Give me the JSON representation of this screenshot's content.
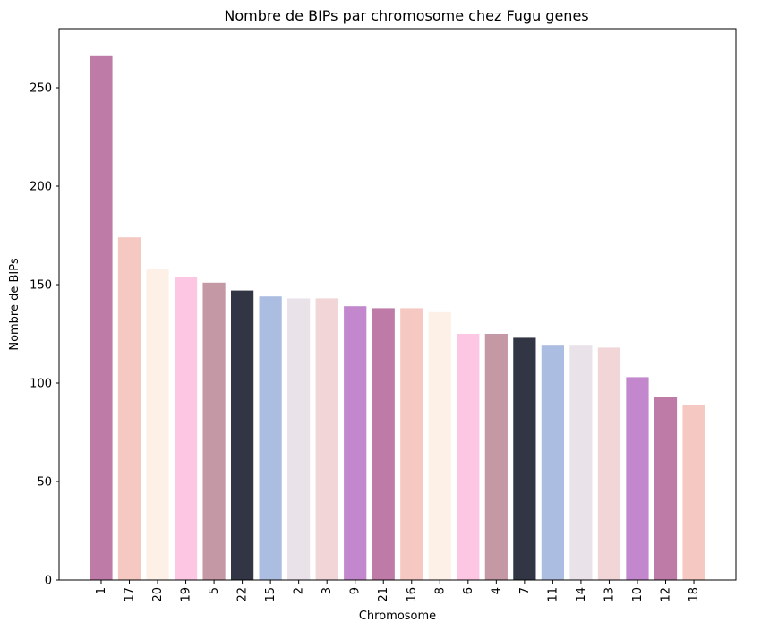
{
  "chart_data": {
    "type": "bar",
    "title": "Nombre de BIPs par chromosome chez Fugu genes",
    "xlabel": "Chromosome",
    "ylabel": "Nombre de BIPs",
    "categories": [
      "1",
      "17",
      "20",
      "19",
      "5",
      "22",
      "15",
      "2",
      "3",
      "9",
      "21",
      "16",
      "8",
      "6",
      "4",
      "7",
      "11",
      "14",
      "13",
      "10",
      "12",
      "18"
    ],
    "values": [
      266,
      174,
      158,
      154,
      151,
      147,
      144,
      143,
      143,
      139,
      138,
      138,
      136,
      125,
      125,
      123,
      119,
      119,
      118,
      103,
      93,
      89
    ],
    "colors": [
      "#be7ba7",
      "#f5c8c2",
      "#fdf0e7",
      "#fdc6e3",
      "#c498a4",
      "#323644",
      "#abbde0",
      "#e9e2e8",
      "#f1d5d7",
      "#c287cc",
      "#be7ba7",
      "#f5c8c2",
      "#fdf0e7",
      "#fdc6e3",
      "#c498a4",
      "#323644",
      "#abbde0",
      "#e9e2e8",
      "#f1d5d7",
      "#c287cc",
      "#be7ba7",
      "#f5c8c2"
    ],
    "ylim": [
      0,
      280
    ],
    "yticks": [
      0,
      50,
      100,
      150,
      200,
      250
    ],
    "grid": false,
    "legend": "none"
  }
}
